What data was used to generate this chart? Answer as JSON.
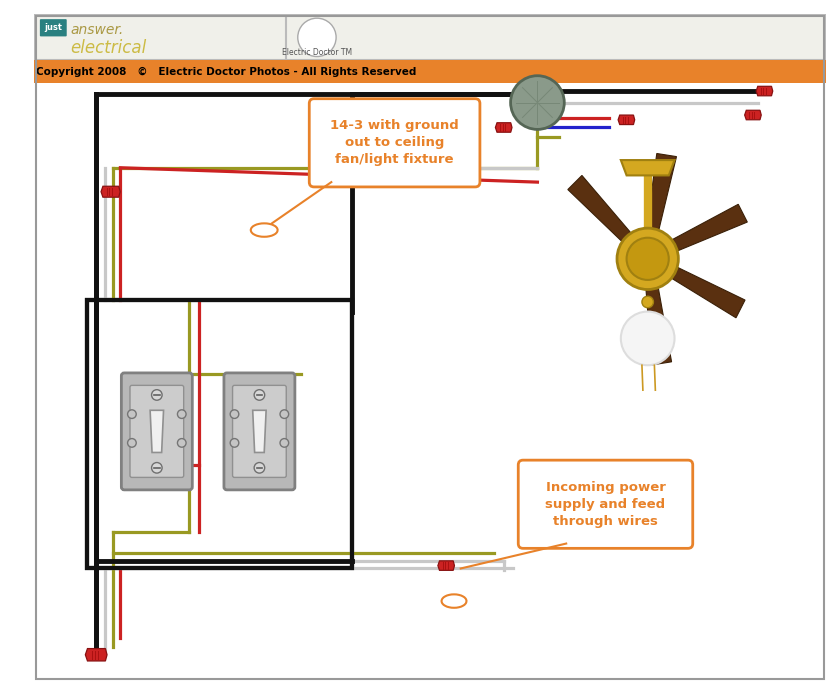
{
  "bg": "#ffffff",
  "header_bg": "#f0f0ea",
  "orange": "#e8822a",
  "black": "#111111",
  "white_wire": "#c8c8c8",
  "red_wire": "#cc2222",
  "yg_wire": "#999922",
  "blue_wire": "#2222cc",
  "connector_red": "#cc2222",
  "switch_gray": "#b5b5b5",
  "fan_gold": "#d4a820",
  "fan_blade": "#5a3010",
  "junction_gray": "#889988",
  "label1": "14-3 with ground\nout to ceiling\nfan/light fixture",
  "label2": "Incoming power\nsupply and feed\nthrough wires",
  "copyright": "Copyright 2008   ©   Electric Doctor Photos - All Rights Reserved"
}
